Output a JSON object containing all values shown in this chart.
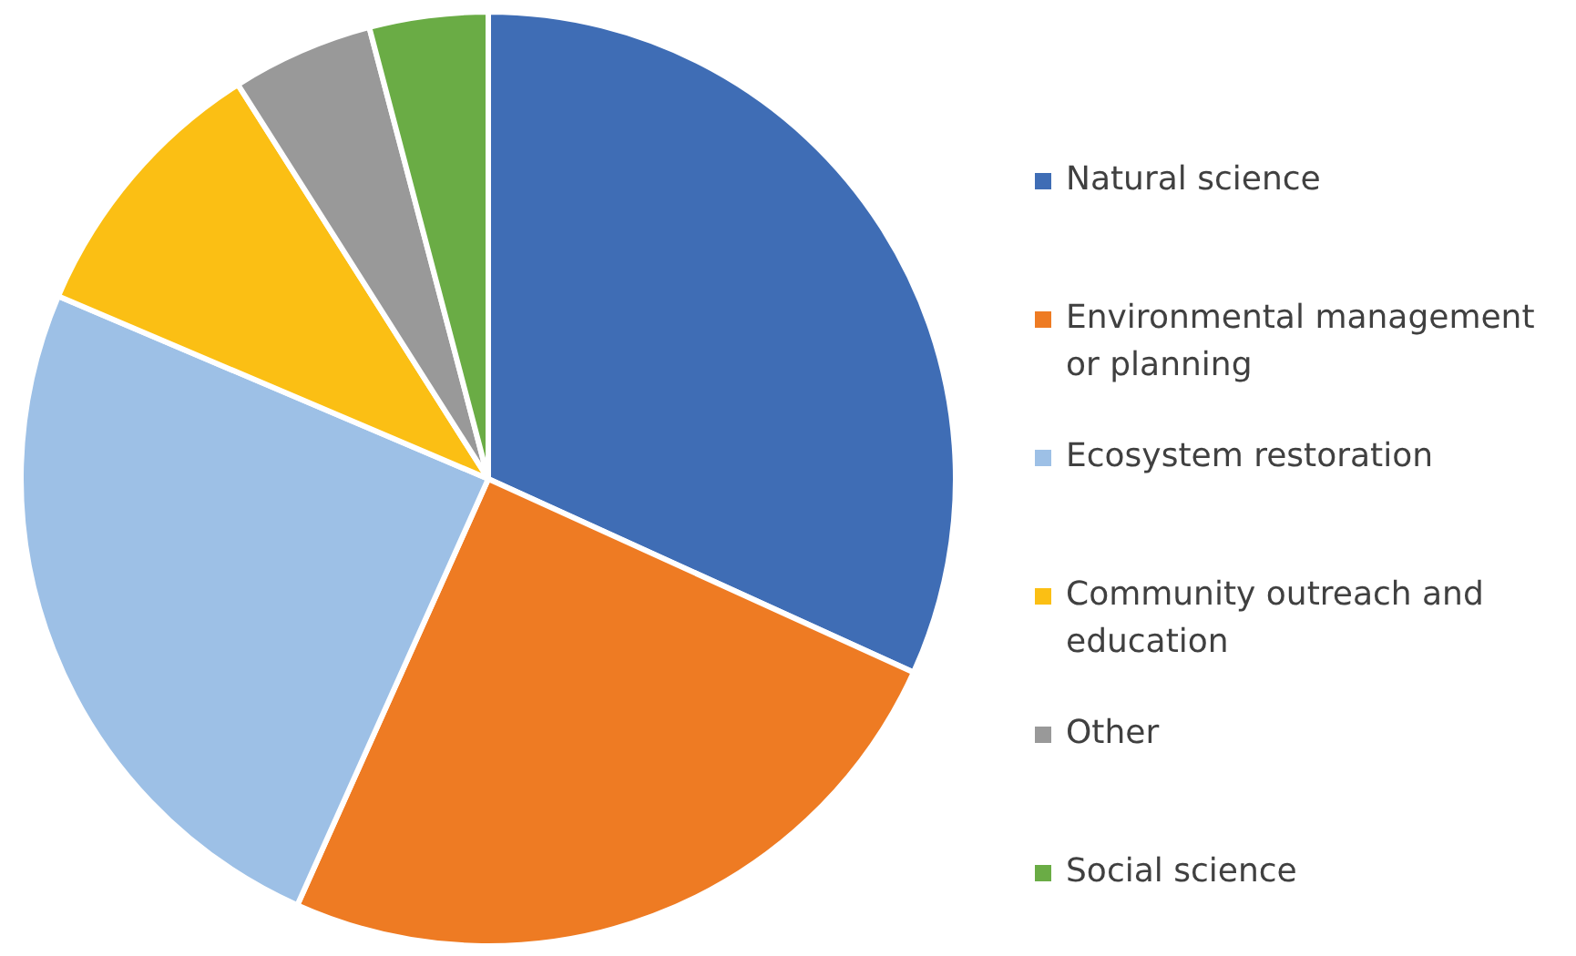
{
  "chart_data": {
    "type": "pie",
    "categories": [
      "Natural science",
      "Environmental management or planning",
      "Ecosystem restoration",
      "Community outreach and education",
      "Other",
      "Social science"
    ],
    "values": [
      31.8,
      24.9,
      24.7,
      9.6,
      4.9,
      4.1
    ],
    "colors": [
      "#3f6db5",
      "#ee7b23",
      "#9dc0e6",
      "#fbbf14",
      "#999999",
      "#6aac45"
    ],
    "legend": "right"
  }
}
